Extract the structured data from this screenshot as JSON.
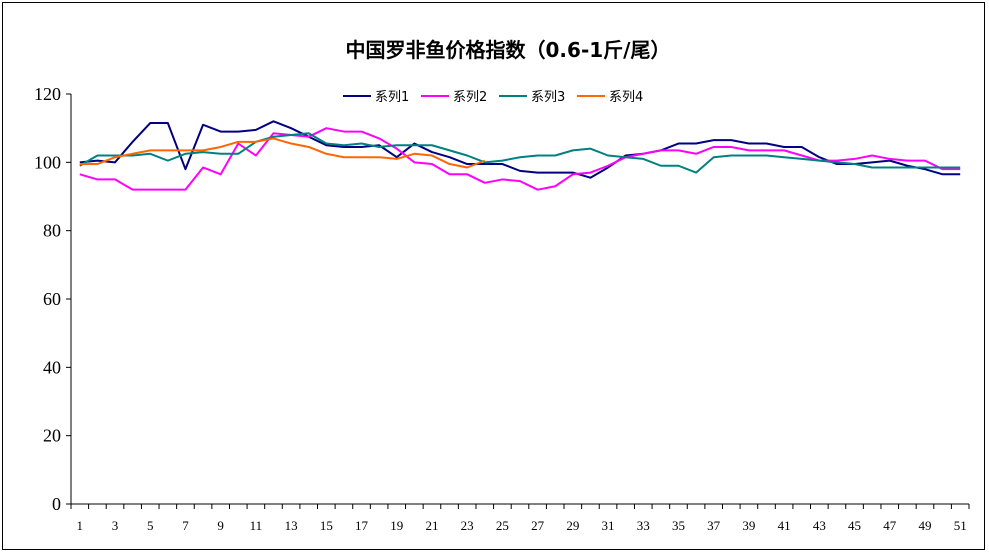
{
  "chart_data": {
    "type": "line",
    "title": "中国罗非鱼价格指数（0.6-1斤/尾）",
    "xlabel": "",
    "ylabel": "",
    "ylim": [
      0,
      120
    ],
    "yticks": [
      0,
      20,
      40,
      60,
      80,
      100,
      120
    ],
    "x": [
      1,
      2,
      3,
      4,
      5,
      6,
      7,
      8,
      9,
      10,
      11,
      12,
      13,
      14,
      15,
      16,
      17,
      18,
      19,
      20,
      21,
      22,
      23,
      24,
      25,
      26,
      27,
      28,
      29,
      30,
      31,
      32,
      33,
      34,
      35,
      36,
      37,
      38,
      39,
      40,
      41,
      42,
      43,
      44,
      45,
      46,
      47,
      48,
      49,
      50,
      51
    ],
    "xtick_labels": [
      "1",
      "3",
      "5",
      "7",
      "9",
      "11",
      "13",
      "15",
      "17",
      "19",
      "21",
      "23",
      "25",
      "27",
      "29",
      "31",
      "33",
      "35",
      "37",
      "39",
      "41",
      "43",
      "45",
      "47",
      "49",
      "51"
    ],
    "grid": false,
    "legend": "top-center",
    "series": [
      {
        "name": "系列1",
        "color": "#000080",
        "values": [
          100,
          100.5,
          100,
          106,
          111.5,
          111.5,
          98,
          111,
          109,
          109,
          109.5,
          112,
          110,
          107.5,
          105,
          104.5,
          104.5,
          105,
          101.5,
          105.5,
          103,
          101.5,
          99.5,
          99.5,
          99.5,
          97.5,
          97,
          97,
          97,
          95.5,
          98.5,
          102,
          102.5,
          103.5,
          105.5,
          105.5,
          106.5,
          106.5,
          105.5,
          105.5,
          104.5,
          104.5,
          101.5,
          99.5,
          99.5,
          100,
          100.5,
          99,
          98,
          96.5,
          96.5
        ]
      },
      {
        "name": "系列2",
        "color": "#FF00FF",
        "values": [
          96.5,
          95,
          95,
          92,
          92,
          92,
          92,
          98.5,
          96.5,
          105.5,
          102,
          108.5,
          108,
          107.5,
          110,
          109,
          109,
          107,
          104,
          100,
          99.5,
          96.5,
          96.5,
          94,
          95,
          94.5,
          92,
          93,
          96.5,
          97,
          99,
          101.5,
          102.5,
          103.5,
          103.5,
          102.5,
          104.5,
          104.5,
          103.5,
          103.5,
          103.5,
          102,
          100.5,
          100.5,
          101,
          102,
          101,
          100.5,
          100.5,
          98,
          98
        ]
      },
      {
        "name": "系列3",
        "color": "#008080",
        "values": [
          99,
          102,
          102,
          102,
          102.5,
          100.5,
          102.5,
          103,
          102.5,
          102.5,
          106,
          107.5,
          108,
          108.5,
          105.5,
          105,
          105.5,
          104.5,
          105,
          105,
          105,
          103.5,
          102,
          100,
          100.5,
          101.5,
          102,
          102,
          103.5,
          104,
          102,
          101.5,
          101,
          99,
          99,
          97,
          101.5,
          102,
          102,
          102,
          101.5,
          101,
          100.5,
          100,
          99.5,
          98.5,
          98.5,
          98.5,
          98.5,
          98.5,
          98.5
        ]
      },
      {
        "name": "系列4",
        "color": "#FF6600",
        "values": [
          99.5,
          99.5,
          101.5,
          102.5,
          103.5,
          103.5,
          103.5,
          103.5,
          104.5,
          106,
          106,
          107,
          105.5,
          104.5,
          102.5,
          101.5,
          101.5,
          101.5,
          101,
          102.5,
          102,
          99.5,
          98.5,
          100.5,
          null,
          null,
          null,
          null,
          null,
          null,
          null,
          null,
          null,
          null,
          null,
          null,
          null,
          null,
          null,
          null,
          null,
          null,
          null,
          null,
          null,
          null,
          null,
          null,
          null,
          null,
          null
        ]
      }
    ]
  }
}
